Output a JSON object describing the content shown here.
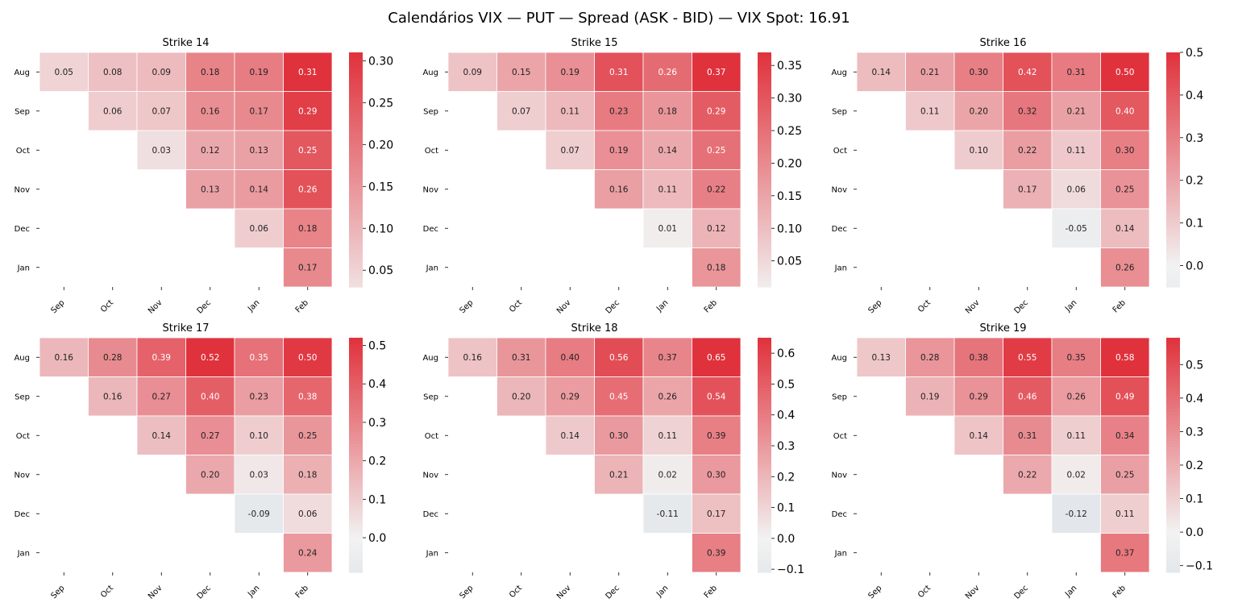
{
  "title": "Calendários VIX — PUT — Spread (ASK - BID) — VIX Spot: 16.91",
  "colors": {
    "negative": "#a9bed0",
    "neutral": "#f2f2f2",
    "positive": "#e0323c"
  },
  "chart_data": [
    {
      "type": "heatmap",
      "title": "Strike 14",
      "rows": [
        "Aug",
        "Sep",
        "Oct",
        "Nov",
        "Dec",
        "Jan"
      ],
      "columns": [
        "Sep",
        "Oct",
        "Nov",
        "Dec",
        "Jan",
        "Feb"
      ],
      "values": [
        [
          0.05,
          0.08,
          0.09,
          0.18,
          0.19,
          0.31
        ],
        [
          null,
          0.06,
          0.07,
          0.16,
          0.17,
          0.29
        ],
        [
          null,
          null,
          0.03,
          0.12,
          0.13,
          0.25
        ],
        [
          null,
          null,
          null,
          0.13,
          0.14,
          0.26
        ],
        [
          null,
          null,
          null,
          null,
          0.06,
          0.18
        ],
        [
          null,
          null,
          null,
          null,
          null,
          0.17
        ]
      ],
      "color_range": [
        0.03,
        0.31
      ],
      "colorbar_ticks": [
        "0.05",
        "0.10",
        "0.15",
        "0.20",
        "0.25",
        "0.30"
      ]
    },
    {
      "type": "heatmap",
      "title": "Strike 15",
      "rows": [
        "Aug",
        "Sep",
        "Oct",
        "Nov",
        "Dec",
        "Jan"
      ],
      "columns": [
        "Sep",
        "Oct",
        "Nov",
        "Dec",
        "Jan",
        "Feb"
      ],
      "values": [
        [
          0.09,
          0.15,
          0.19,
          0.31,
          0.26,
          0.37
        ],
        [
          null,
          0.07,
          0.11,
          0.23,
          0.18,
          0.29
        ],
        [
          null,
          null,
          0.07,
          0.19,
          0.14,
          0.25
        ],
        [
          null,
          null,
          null,
          0.16,
          0.11,
          0.22
        ],
        [
          null,
          null,
          null,
          null,
          0.01,
          0.12
        ],
        [
          null,
          null,
          null,
          null,
          null,
          0.18
        ]
      ],
      "color_range": [
        0.01,
        0.37
      ],
      "colorbar_ticks": [
        "0.05",
        "0.10",
        "0.15",
        "0.20",
        "0.25",
        "0.30",
        "0.35"
      ]
    },
    {
      "type": "heatmap",
      "title": "Strike 16",
      "rows": [
        "Aug",
        "Sep",
        "Oct",
        "Nov",
        "Dec",
        "Jan"
      ],
      "columns": [
        "Sep",
        "Oct",
        "Nov",
        "Dec",
        "Jan",
        "Feb"
      ],
      "values": [
        [
          0.14,
          0.21,
          0.3,
          0.42,
          0.31,
          0.5
        ],
        [
          null,
          0.11,
          0.2,
          0.32,
          0.21,
          0.4
        ],
        [
          null,
          null,
          0.1,
          0.22,
          0.11,
          0.3
        ],
        [
          null,
          null,
          null,
          0.17,
          0.06,
          0.25
        ],
        [
          null,
          null,
          null,
          null,
          -0.05,
          0.14
        ],
        [
          null,
          null,
          null,
          null,
          null,
          0.26
        ]
      ],
      "color_range": [
        -0.05,
        0.5
      ],
      "colorbar_ticks": [
        "0.0",
        "0.1",
        "0.2",
        "0.3",
        "0.4",
        "0.5"
      ]
    },
    {
      "type": "heatmap",
      "title": "Strike 17",
      "rows": [
        "Aug",
        "Sep",
        "Oct",
        "Nov",
        "Dec",
        "Jan"
      ],
      "columns": [
        "Sep",
        "Oct",
        "Nov",
        "Dec",
        "Jan",
        "Feb"
      ],
      "values": [
        [
          0.16,
          0.28,
          0.39,
          0.52,
          0.35,
          0.5
        ],
        [
          null,
          0.16,
          0.27,
          0.4,
          0.23,
          0.38
        ],
        [
          null,
          null,
          0.14,
          0.27,
          0.1,
          0.25
        ],
        [
          null,
          null,
          null,
          0.2,
          0.03,
          0.18
        ],
        [
          null,
          null,
          null,
          null,
          -0.09,
          0.06
        ],
        [
          null,
          null,
          null,
          null,
          null,
          0.24
        ]
      ],
      "color_range": [
        -0.09,
        0.52
      ],
      "colorbar_ticks": [
        "0.0",
        "0.1",
        "0.2",
        "0.3",
        "0.4",
        "0.5"
      ]
    },
    {
      "type": "heatmap",
      "title": "Strike 18",
      "rows": [
        "Aug",
        "Sep",
        "Oct",
        "Nov",
        "Dec",
        "Jan"
      ],
      "columns": [
        "Sep",
        "Oct",
        "Nov",
        "Dec",
        "Jan",
        "Feb"
      ],
      "values": [
        [
          0.16,
          0.31,
          0.4,
          0.56,
          0.37,
          0.65
        ],
        [
          null,
          0.2,
          0.29,
          0.45,
          0.26,
          0.54
        ],
        [
          null,
          null,
          0.14,
          0.3,
          0.11,
          0.39
        ],
        [
          null,
          null,
          null,
          0.21,
          0.02,
          0.3
        ],
        [
          null,
          null,
          null,
          null,
          -0.11,
          0.17
        ],
        [
          null,
          null,
          null,
          null,
          null,
          0.39
        ]
      ],
      "color_range": [
        -0.11,
        0.65
      ],
      "colorbar_ticks": [
        "−0.1",
        "0.0",
        "0.1",
        "0.2",
        "0.3",
        "0.4",
        "0.5",
        "0.6"
      ]
    },
    {
      "type": "heatmap",
      "title": "Strike 19",
      "rows": [
        "Aug",
        "Sep",
        "Oct",
        "Nov",
        "Dec",
        "Jan"
      ],
      "columns": [
        "Sep",
        "Oct",
        "Nov",
        "Dec",
        "Jan",
        "Feb"
      ],
      "values": [
        [
          0.13,
          0.28,
          0.38,
          0.55,
          0.35,
          0.58
        ],
        [
          null,
          0.19,
          0.29,
          0.46,
          0.26,
          0.49
        ],
        [
          null,
          null,
          0.14,
          0.31,
          0.11,
          0.34
        ],
        [
          null,
          null,
          null,
          0.22,
          0.02,
          0.25
        ],
        [
          null,
          null,
          null,
          null,
          -0.12,
          0.11
        ],
        [
          null,
          null,
          null,
          null,
          null,
          0.37
        ]
      ],
      "color_range": [
        -0.12,
        0.58
      ],
      "colorbar_ticks": [
        "−0.1",
        "0.0",
        "0.1",
        "0.2",
        "0.3",
        "0.4",
        "0.5"
      ]
    }
  ]
}
